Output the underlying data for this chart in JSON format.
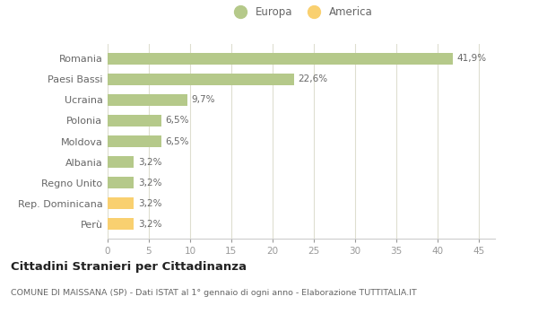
{
  "categories": [
    "Perù",
    "Rep. Dominicana",
    "Regno Unito",
    "Albania",
    "Moldova",
    "Polonia",
    "Ucraina",
    "Paesi Bassi",
    "Romania"
  ],
  "values": [
    3.2,
    3.2,
    3.2,
    3.2,
    6.5,
    6.5,
    9.7,
    22.6,
    41.9
  ],
  "colors": [
    "#f9d070",
    "#f9d070",
    "#b5c98a",
    "#b5c98a",
    "#b5c98a",
    "#b5c98a",
    "#b5c98a",
    "#b5c98a",
    "#b5c98a"
  ],
  "labels": [
    "3,2%",
    "3,2%",
    "3,2%",
    "3,2%",
    "6,5%",
    "6,5%",
    "9,7%",
    "22,6%",
    "41,9%"
  ],
  "xlim": [
    0,
    47
  ],
  "xticks": [
    0,
    5,
    10,
    15,
    20,
    25,
    30,
    35,
    40,
    45
  ],
  "legend_europa_color": "#b5c98a",
  "legend_america_color": "#f9d070",
  "title": "Cittadini Stranieri per Cittadinanza",
  "subtitle": "COMUNE DI MAISSANA (SP) - Dati ISTAT al 1° gennaio di ogni anno - Elaborazione TUTTITALIA.IT",
  "background_color": "#ffffff",
  "grid_color": "#deded0"
}
